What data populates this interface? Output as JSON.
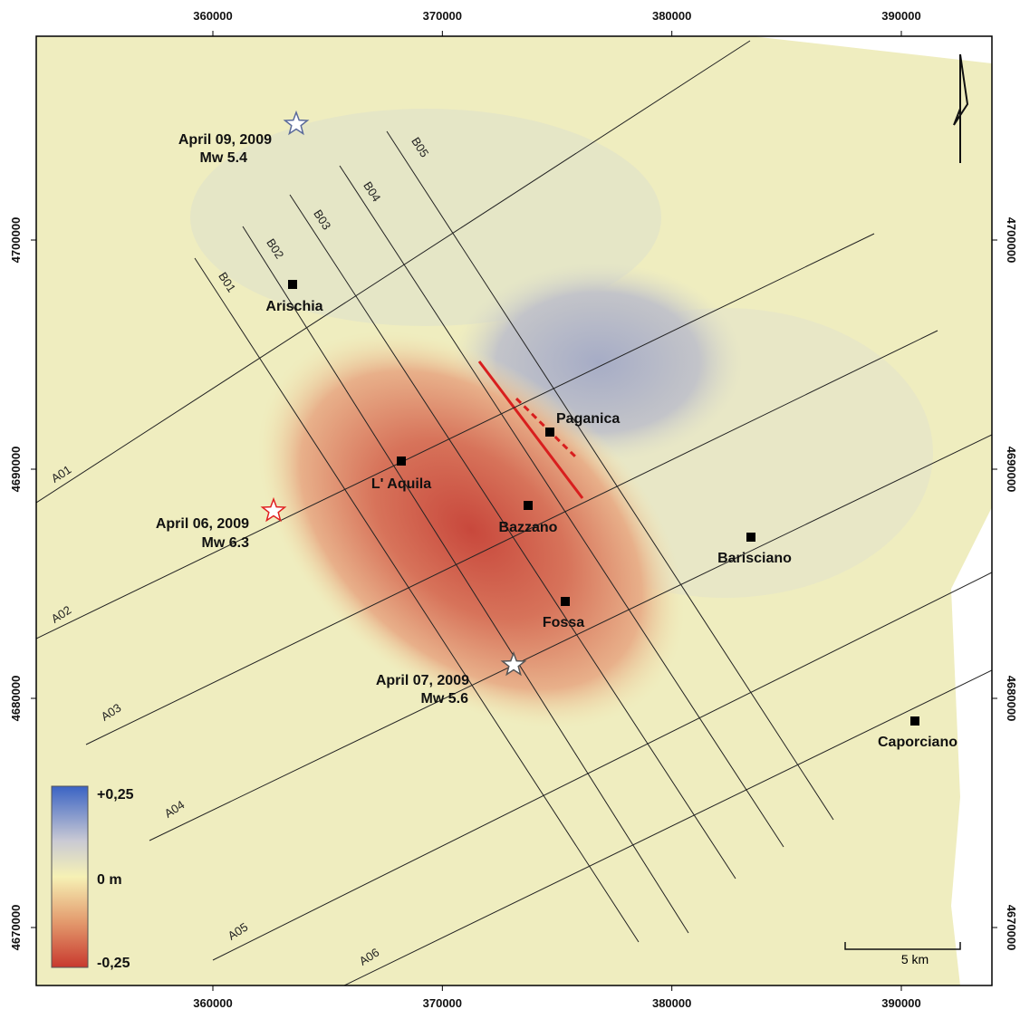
{
  "map": {
    "xticks": [
      360000,
      370000,
      380000,
      390000
    ],
    "yticks": [
      4670000,
      4680000,
      4690000,
      4700000
    ],
    "towns": [
      "Arischia",
      "L' Aquila",
      "Paganica",
      "Bazzano",
      "Barisciano",
      "Fossa",
      "Caporciano"
    ],
    "events": [
      {
        "date": "April 09, 2009",
        "magnitude": "Mw 5.4"
      },
      {
        "date": "April 06, 2009",
        "magnitude": "Mw 6.3"
      },
      {
        "date": "April 07, 2009",
        "magnitude": "Mw 5.6"
      }
    ],
    "profiles_a": [
      "A01",
      "A02",
      "A03",
      "A04",
      "A05",
      "A06"
    ],
    "profiles_b": [
      "B01",
      "B02",
      "B03",
      "B04",
      "B05"
    ],
    "legend": {
      "max": "+0,25",
      "mid": "0 m",
      "min": "-0,25"
    },
    "scale_bar": "5 km"
  }
}
